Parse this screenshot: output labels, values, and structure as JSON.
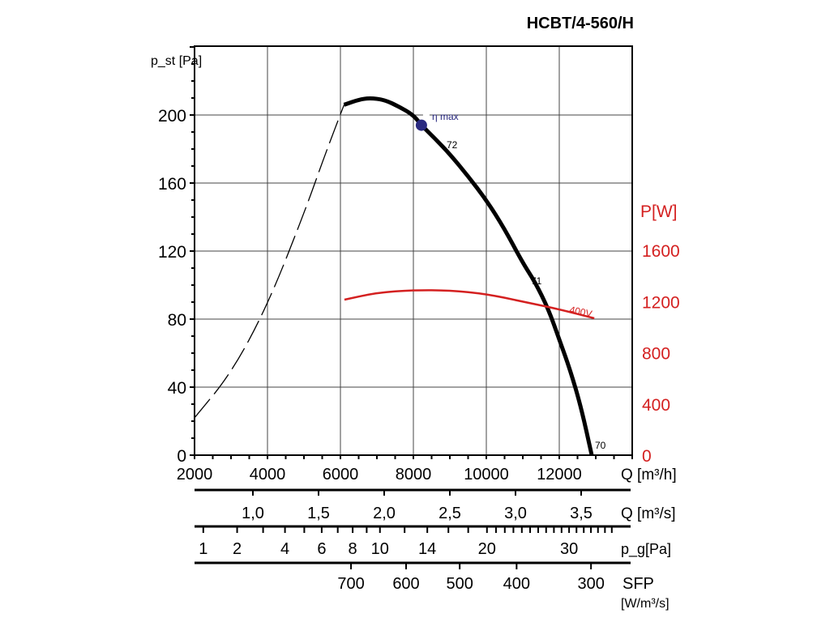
{
  "title": "HCBT/4-560/H",
  "chart_data": {
    "type": "line",
    "title": "HCBT/4-560/H",
    "xlabel": "Q [m³/h]",
    "ylabel": "p_st [Pa]",
    "y2label": "P[W]",
    "xlim": [
      2000,
      14000
    ],
    "ylim": [
      0,
      240
    ],
    "y2lim": [
      0,
      3000
    ],
    "grid": true,
    "x_ticks": [
      2000,
      4000,
      6000,
      8000,
      10000,
      12000
    ],
    "y_ticks": [
      0,
      40,
      80,
      120,
      160,
      200
    ],
    "y2_ticks": [
      0,
      400,
      800,
      1200,
      1600
    ],
    "series": [
      {
        "name": "p_st",
        "style": "solid",
        "color": "#000000",
        "x": [
          6100,
          6500,
          6800,
          7200,
          7600,
          8000,
          8220,
          8600,
          9000,
          9500,
          10000,
          10500,
          11000,
          11330,
          11700,
          12000,
          12300,
          12600,
          12890
        ],
        "y": [
          206,
          209,
          210,
          209,
          205,
          200,
          194,
          186,
          177,
          164,
          150,
          133,
          113,
          102,
          86,
          68,
          50,
          28,
          0
        ]
      },
      {
        "name": "p_st unstable",
        "style": "dashed",
        "color": "#000000",
        "x": [
          2000,
          3000,
          4000,
          5000,
          5600,
          6100
        ],
        "y": [
          22,
          48,
          88,
          142,
          178,
          206
        ]
      },
      {
        "name": "400V",
        "axis": "y2",
        "color": "#d42020",
        "x": [
          6110,
          7000,
          8000,
          9000,
          10000,
          11000,
          12000,
          12960
        ],
        "y": [
          1215,
          1270,
          1290,
          1288,
          1260,
          1200,
          1140,
          1070
        ]
      }
    ],
    "annotations": [
      {
        "text": "η max",
        "x": 8220,
        "y": 194,
        "color": "#2a2a80"
      },
      {
        "text": "72",
        "x": 8900,
        "y": 182
      },
      {
        "text": "71",
        "x": 11330,
        "y": 103
      },
      {
        "text": "70",
        "x": 12890,
        "y": 0
      },
      {
        "text": "400V",
        "x": 12000,
        "y2": 1200,
        "color": "#d42020"
      }
    ],
    "secondary_scales": [
      {
        "label": "Q [m³/s]",
        "ticks": [
          "1,0",
          "1,5",
          "2,0",
          "2,5",
          "3,0",
          "3,5"
        ],
        "values": [
          1.0,
          1.5,
          2.0,
          2.5,
          3.0,
          3.5
        ]
      },
      {
        "label": "p_g[Pa]",
        "ticks": [
          "1",
          "2",
          "4",
          "6",
          "8",
          "10",
          "14",
          "20",
          "30"
        ],
        "values": [
          1,
          2,
          4,
          6,
          8,
          10,
          14,
          20,
          30
        ]
      },
      {
        "label": "SFP",
        "unit": "[W/m³/s]",
        "ticks": [
          "700",
          "600",
          "500",
          "400",
          "300"
        ],
        "q_m3h": [
          6290,
          7800,
          9270,
          10830,
          12870
        ]
      }
    ]
  }
}
